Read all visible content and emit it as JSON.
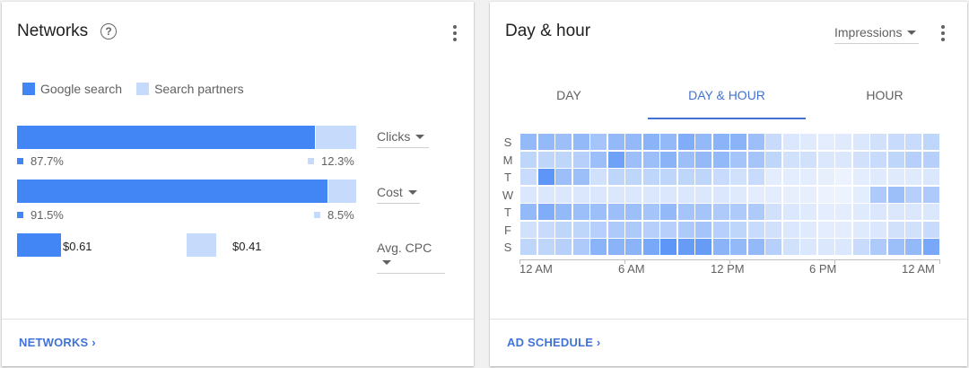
{
  "networks": {
    "title": "Networks",
    "help_glyph": "?",
    "legend": [
      {
        "label": "Google search",
        "color": "#4285f4"
      },
      {
        "label": "Search partners",
        "color": "#c6dafc"
      }
    ],
    "metrics": [
      {
        "name": "Clicks",
        "google_pct": 87.7,
        "partners_pct": 12.3,
        "google_label": "87.7%",
        "partners_label": "12.3%"
      },
      {
        "name": "Cost",
        "google_pct": 91.5,
        "partners_pct": 8.5,
        "google_label": "91.5%",
        "partners_label": "8.5%"
      }
    ],
    "cpc": {
      "name": "Avg. CPC",
      "google_value": "$0.61",
      "partners_value": "$0.41",
      "google_num": 0.61,
      "partners_num": 0.41
    },
    "footer_link": "NETWORKS ›"
  },
  "dayhour": {
    "title": "Day & hour",
    "metric_dropdown": "Impressions",
    "tabs": [
      {
        "label": "DAY",
        "active": false
      },
      {
        "label": "DAY & HOUR",
        "active": true
      },
      {
        "label": "HOUR",
        "active": false
      }
    ],
    "days": [
      "S",
      "M",
      "T",
      "W",
      "T",
      "F",
      "S"
    ],
    "hour_labels": [
      "12 AM",
      "6 AM",
      "12 PM",
      "6 PM",
      "12 AM"
    ],
    "heatmap_intensity": [
      [
        0.55,
        0.55,
        0.5,
        0.55,
        0.45,
        0.55,
        0.55,
        0.6,
        0.55,
        0.65,
        0.55,
        0.6,
        0.6,
        0.5,
        0.25,
        0.15,
        0.12,
        0.1,
        0.12,
        0.15,
        0.2,
        0.25,
        0.25,
        0.3
      ],
      [
        0.3,
        0.3,
        0.3,
        0.35,
        0.5,
        0.75,
        0.5,
        0.5,
        0.6,
        0.5,
        0.55,
        0.55,
        0.45,
        0.45,
        0.3,
        0.2,
        0.2,
        0.15,
        0.15,
        0.2,
        0.25,
        0.3,
        0.35,
        0.35
      ],
      [
        0.25,
        0.85,
        0.5,
        0.5,
        0.2,
        0.3,
        0.3,
        0.3,
        0.3,
        0.3,
        0.3,
        0.25,
        0.2,
        0.25,
        0.1,
        0.1,
        0.1,
        0.08,
        0.05,
        0.1,
        0.12,
        0.12,
        0.12,
        0.15
      ],
      [
        0.15,
        0.15,
        0.15,
        0.15,
        0.15,
        0.15,
        0.15,
        0.15,
        0.15,
        0.15,
        0.15,
        0.15,
        0.12,
        0.1,
        0.1,
        0.08,
        0.08,
        0.05,
        0.05,
        0.1,
        0.4,
        0.5,
        0.35,
        0.4
      ],
      [
        0.55,
        0.65,
        0.55,
        0.5,
        0.5,
        0.5,
        0.5,
        0.45,
        0.55,
        0.45,
        0.45,
        0.4,
        0.4,
        0.4,
        0.2,
        0.15,
        0.12,
        0.1,
        0.1,
        0.12,
        0.15,
        0.15,
        0.15,
        0.15
      ],
      [
        0.2,
        0.25,
        0.3,
        0.3,
        0.35,
        0.4,
        0.4,
        0.35,
        0.35,
        0.4,
        0.45,
        0.35,
        0.3,
        0.25,
        0.2,
        0.15,
        0.12,
        0.1,
        0.1,
        0.12,
        0.15,
        0.2,
        0.2,
        0.25
      ],
      [
        0.3,
        0.3,
        0.35,
        0.4,
        0.6,
        0.6,
        0.6,
        0.7,
        0.85,
        0.8,
        0.8,
        0.6,
        0.55,
        0.55,
        0.35,
        0.2,
        0.15,
        0.15,
        0.15,
        0.25,
        0.4,
        0.5,
        0.55,
        0.7
      ]
    ],
    "footer_link": "AD SCHEDULE ›"
  },
  "colors": {
    "google": "#4285f4",
    "partners": "#c6dafc",
    "accent": "#4173d6"
  },
  "icons": [
    "help-icon",
    "more-vert-icon",
    "chevron-right-icon",
    "dropdown-arrow-icon"
  ]
}
